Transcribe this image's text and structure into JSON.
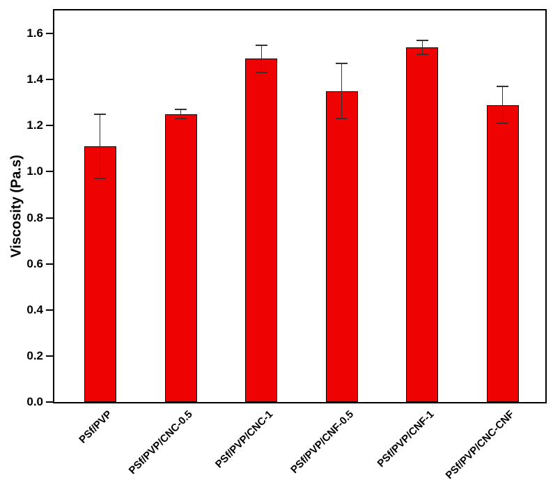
{
  "chart_data": {
    "type": "bar",
    "title": "",
    "xlabel": "",
    "ylabel": "Viscosity (Pa.s)",
    "categories": [
      "PSf/PVP",
      "PSf/PVP/CNC-0.5",
      "PSf/PVP/CNC-1",
      "PSf/PVP/CNF-0.5",
      "PSf/PVP/CNF-1",
      "PSf/PVP/CNC-CNF"
    ],
    "values": [
      1.11,
      1.25,
      1.49,
      1.35,
      1.54,
      1.29
    ],
    "error_bars": [
      0.14,
      0.02,
      0.06,
      0.12,
      0.03,
      0.08
    ],
    "ylim": [
      0,
      1.7
    ],
    "ytick_labels": [
      "0.0",
      "0.2",
      "0.4",
      "0.6",
      "0.8",
      "1.0",
      "1.2",
      "1.4",
      "1.6"
    ],
    "ytick_values": [
      0.0,
      0.2,
      0.4,
      0.6,
      0.8,
      1.0,
      1.2,
      1.4,
      1.6
    ],
    "x_tick_label_rotation_deg": 45,
    "grid": false,
    "legend": null,
    "bar_color": "#ee0202",
    "bar_edge_color": "#140000",
    "error_bar_color": "#333333",
    "axis_color": "#000000",
    "background_color": "#ffffff"
  }
}
